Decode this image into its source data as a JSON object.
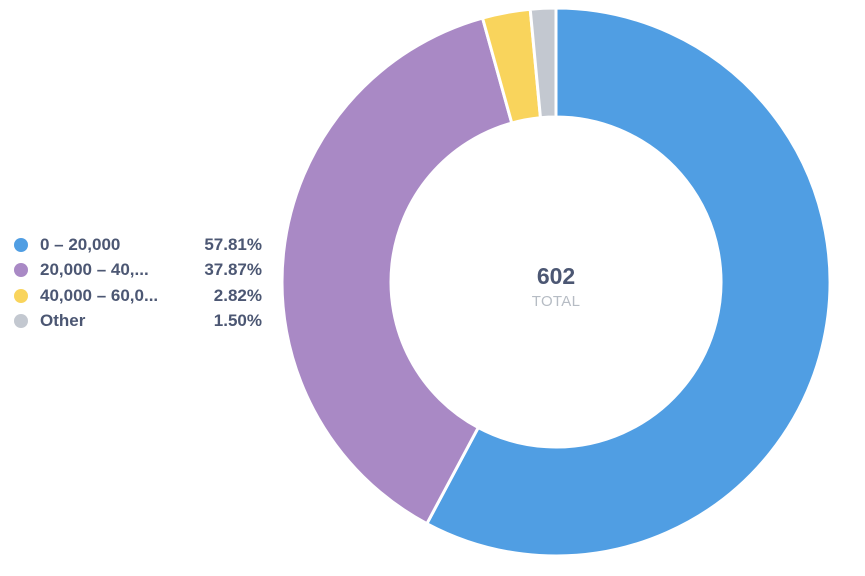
{
  "chart_data": {
    "type": "pie",
    "style": "donut",
    "total": {
      "value": "602",
      "label": "TOTAL"
    },
    "slices": [
      {
        "label": "0 – 20,000",
        "display_label": "0 – 20,000",
        "percent": 57.81,
        "percent_label": "57.81%",
        "color": "#509ee3"
      },
      {
        "label": "20,000 – 40,...",
        "display_label": "20,000 – 40,...",
        "percent": 37.87,
        "percent_label": "37.87%",
        "color": "#a989c5"
      },
      {
        "label": "40,000 – 60,0...",
        "display_label": "40,000 – 60,0...",
        "percent": 2.82,
        "percent_label": "2.82%",
        "color": "#f9d45c"
      },
      {
        "label": "Other",
        "display_label": "Other",
        "percent": 1.5,
        "percent_label": "1.50%",
        "color": "#c3c8d0"
      }
    ],
    "legend_position": "left"
  }
}
